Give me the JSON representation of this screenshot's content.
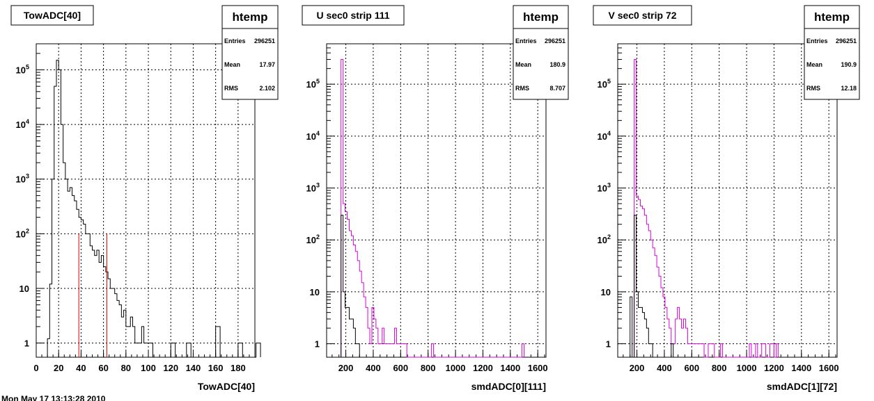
{
  "footer": "Mon May 17 13:13:28 2010",
  "chart_data": [
    {
      "type": "histogram",
      "title": "TowADC[40]",
      "xlabel": "TowADC[40]",
      "ylabel": "",
      "xlim": [
        0,
        195
      ],
      "ylim": [
        0.55,
        300000
      ],
      "yscale": "log",
      "grid": true,
      "x_ticks": [
        "0",
        "20",
        "40",
        "60",
        "80",
        "100",
        "120",
        "140",
        "160",
        "180"
      ],
      "x_tick_values": [
        0,
        20,
        40,
        60,
        80,
        100,
        120,
        140,
        160,
        180
      ],
      "y_ticks": [
        "1",
        "10",
        "10^2",
        "10^3",
        "10^4",
        "10^5"
      ],
      "stats": {
        "name": "htemp",
        "entries_label": "Entries",
        "entries": "296251",
        "mean_label": "Mean",
        "mean": "17.97",
        "rms_label": "RMS",
        "rms": "2.102"
      },
      "series": [
        {
          "color": "#000000",
          "bin_start": 10,
          "bin_width": 2,
          "values": [
            1.2,
            12,
            1000,
            50000,
            150000,
            100000,
            10000,
            2000,
            1000,
            600,
            700,
            500,
            400,
            280,
            200,
            180,
            150,
            100,
            100,
            60,
            50,
            40,
            50,
            30,
            40,
            25,
            20,
            15,
            10,
            10,
            8,
            6,
            5,
            3,
            4,
            2,
            2,
            3,
            2,
            1,
            1,
            1,
            2,
            1,
            1,
            1,
            1,
            0,
            0,
            0,
            0,
            0,
            0,
            0,
            0,
            1,
            1,
            0,
            0,
            0,
            0,
            0,
            1,
            1,
            0,
            0,
            0,
            0,
            0,
            0,
            0,
            0,
            0,
            0,
            0,
            2,
            2,
            0,
            0,
            0,
            0,
            0,
            0,
            0,
            0,
            1,
            1,
            0,
            0,
            0,
            0,
            0,
            0,
            1,
            1
          ]
        },
        {
          "color": "#e00000",
          "type": "vlines",
          "lines": [
            {
              "x": 38,
              "y": 100
            },
            {
              "x": 63,
              "y": 100
            }
          ]
        }
      ]
    },
    {
      "type": "histogram",
      "title": "U sec0 strip 111",
      "xlabel": "smdADC[0][111]",
      "ylabel": "",
      "xlim": [
        60,
        1660
      ],
      "ylim": [
        0.55,
        600000
      ],
      "yscale": "log",
      "grid": true,
      "x_ticks": [
        "200",
        "400",
        "600",
        "800",
        "1000",
        "1200",
        "1400",
        "1600"
      ],
      "x_tick_values": [
        200,
        400,
        600,
        800,
        1000,
        1200,
        1400,
        1600
      ],
      "y_ticks": [
        "1",
        "10",
        "10^2",
        "10^3",
        "10^4",
        "10^5"
      ],
      "stats": {
        "name": "htemp",
        "entries_label": "Entries",
        "entries": "296251",
        "mean_label": "Mean",
        "mean": "180.9",
        "rms_label": "RMS",
        "rms": "8.707"
      },
      "series": [
        {
          "color": "#dd00dd",
          "bin_start": 165,
          "bin_width": 15,
          "values": [
            300000,
            500,
            350,
            250,
            150,
            120,
            80,
            60,
            40,
            25,
            15,
            8,
            5,
            2,
            1,
            5,
            3,
            2,
            1,
            1,
            2,
            1,
            1,
            1,
            1,
            1,
            2,
            1,
            1,
            1,
            1,
            1,
            0,
            0,
            0,
            0,
            0,
            0,
            0,
            0,
            0,
            0,
            0,
            0,
            1,
            0,
            0,
            0,
            0,
            0,
            0,
            0,
            0,
            0,
            0,
            0,
            0,
            0,
            0,
            0,
            0,
            0,
            0,
            0,
            0,
            0,
            0,
            0,
            0,
            0,
            0,
            0,
            0,
            0,
            0,
            0,
            0,
            0,
            0,
            0,
            0,
            0,
            0,
            0,
            0,
            0,
            0,
            0,
            1
          ]
        },
        {
          "color": "#000000",
          "bin_start": 165,
          "bin_width": 15,
          "values": [
            300,
            10,
            5,
            5,
            3,
            3,
            2,
            1,
            1
          ]
        }
      ]
    },
    {
      "type": "histogram",
      "title": "V sec0 strip 72",
      "xlabel": "smdADC[1][72]",
      "ylabel": "",
      "xlim": [
        60,
        1660
      ],
      "ylim": [
        0.55,
        600000
      ],
      "yscale": "log",
      "grid": true,
      "x_ticks": [
        "200",
        "400",
        "600",
        "800",
        "1000",
        "1200",
        "1400",
        "1600"
      ],
      "x_tick_values": [
        200,
        400,
        600,
        800,
        1000,
        1200,
        1400,
        1600
      ],
      "y_ticks": [
        "1",
        "10",
        "10^2",
        "10^3",
        "10^4",
        "10^5"
      ],
      "stats": {
        "name": "htemp",
        "entries_label": "Entries",
        "entries": "296251",
        "mean_label": "Mean",
        "mean": "190.9",
        "rms_label": "RMS",
        "rms": "12.18"
      },
      "series": [
        {
          "color": "#dd00dd",
          "bin_start": 180,
          "bin_width": 15,
          "values": [
            300000,
            700,
            600,
            450,
            400,
            300,
            200,
            150,
            100,
            70,
            50,
            30,
            20,
            12,
            8,
            5,
            3,
            2,
            1,
            1,
            3,
            5,
            3,
            2,
            3,
            2,
            1,
            1,
            1,
            1,
            1,
            1,
            1,
            1,
            0,
            0,
            1,
            1,
            1,
            0,
            0,
            0,
            1,
            0,
            0,
            0,
            0,
            0,
            0,
            0,
            0,
            0,
            0,
            0,
            0,
            0,
            1,
            0,
            0,
            1,
            0,
            0,
            1,
            1,
            0,
            0,
            1,
            1,
            0,
            1
          ]
        },
        {
          "color": "#000000",
          "bin_start": 150,
          "bin_width": 15,
          "values": [
            8,
            0,
            300,
            10,
            5,
            5,
            4,
            3,
            2,
            1,
            1,
            0,
            0,
            0,
            0,
            0,
            0,
            0,
            0,
            0,
            1
          ]
        }
      ]
    }
  ]
}
